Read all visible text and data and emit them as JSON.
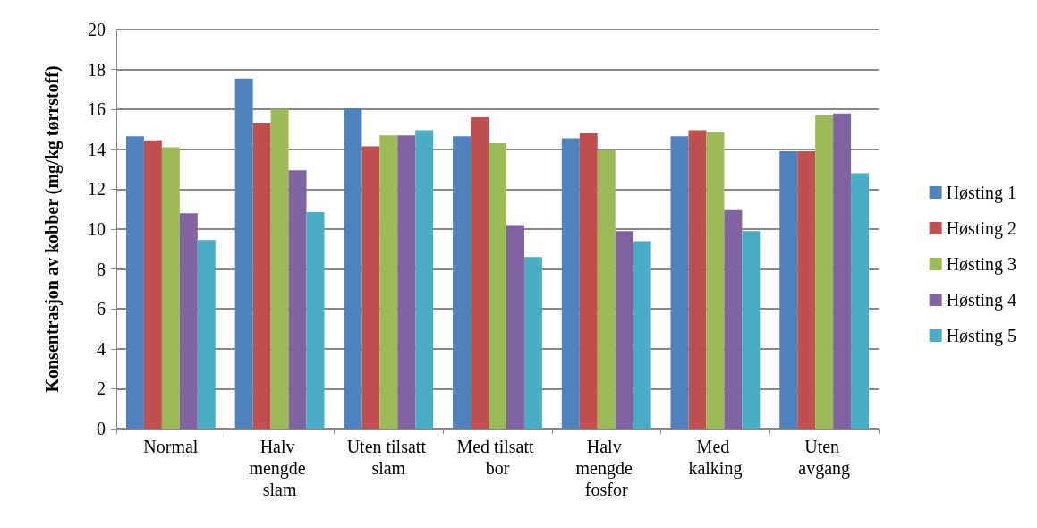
{
  "chart_data": {
    "type": "bar",
    "ylabel": "Konsentrasjon av kobber (mg/kg tørrstoff)",
    "categories": [
      "Normal",
      "Halv mengde slam",
      "Uten tilsatt slam",
      "Med tilsatt bor",
      "Halv mengde fosfor",
      "Med kalking",
      "Uten avgang"
    ],
    "series": [
      {
        "name": "Høsting 1",
        "color": "#4f81bd",
        "values": [
          14.65,
          17.55,
          16.05,
          14.65,
          14.55,
          14.65,
          13.9
        ]
      },
      {
        "name": "Høsting 2",
        "color": "#c0504d",
        "values": [
          14.45,
          15.3,
          14.15,
          15.6,
          14.8,
          14.95,
          13.9
        ]
      },
      {
        "name": "Høsting 3",
        "color": "#9bbb59",
        "values": [
          14.1,
          16.0,
          14.7,
          14.3,
          13.95,
          14.85,
          15.7
        ]
      },
      {
        "name": "Høsting 4",
        "color": "#8064a2",
        "values": [
          10.8,
          12.95,
          14.7,
          10.2,
          9.9,
          10.95,
          15.8
        ]
      },
      {
        "name": "Høsting 5",
        "color": "#4bacc6",
        "values": [
          9.45,
          10.85,
          14.95,
          8.6,
          9.4,
          9.9,
          12.8
        ]
      }
    ],
    "ylim": [
      0,
      20
    ],
    "yticks": [
      0,
      2,
      4,
      6,
      8,
      10,
      12,
      14,
      16,
      18,
      20
    ],
    "grid": "y",
    "legend": "right"
  }
}
